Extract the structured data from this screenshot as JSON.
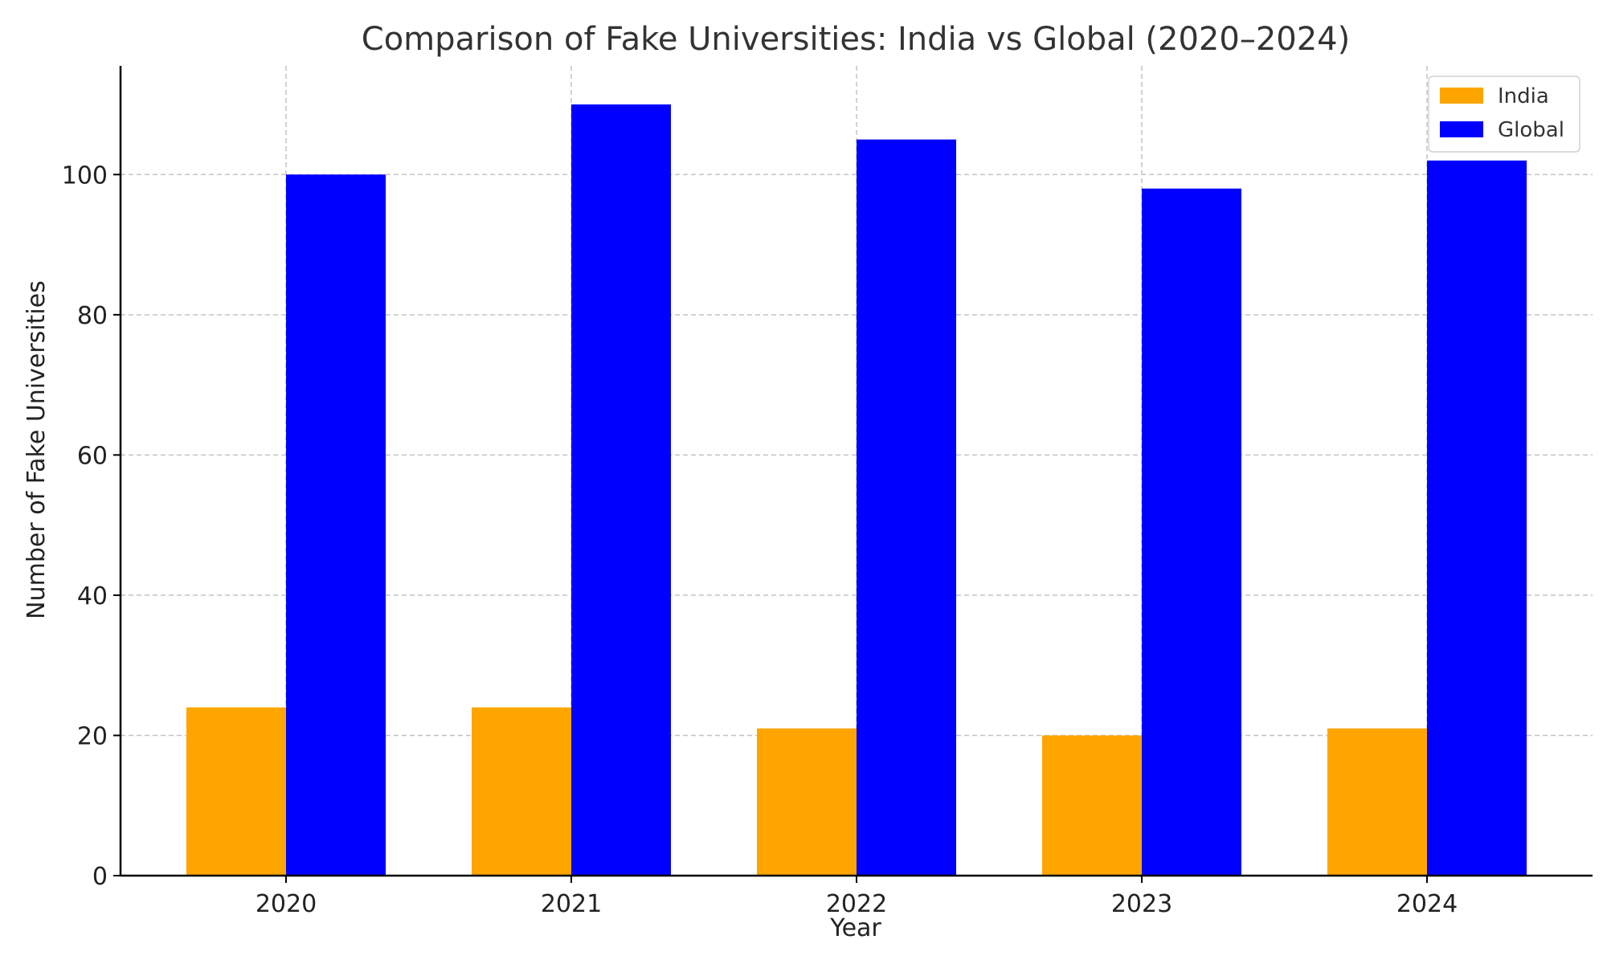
{
  "chart_data": {
    "type": "bar",
    "title": "Comparison of Fake Universities: India vs Global (2020–2024)",
    "xlabel": "Year",
    "ylabel": "Number of Fake Universities",
    "categories": [
      "2020",
      "2021",
      "2022",
      "2023",
      "2024"
    ],
    "series": [
      {
        "name": "India",
        "color": "#ffa500",
        "values": [
          24,
          24,
          21,
          20,
          21
        ]
      },
      {
        "name": "Global",
        "color": "#0000ff",
        "values": [
          100,
          110,
          105,
          98,
          102
        ]
      }
    ],
    "ylim": [
      0,
      115.5
    ],
    "yticks": [
      0,
      20,
      40,
      60,
      80,
      100
    ],
    "grid": true,
    "legend_position": "top-right"
  }
}
